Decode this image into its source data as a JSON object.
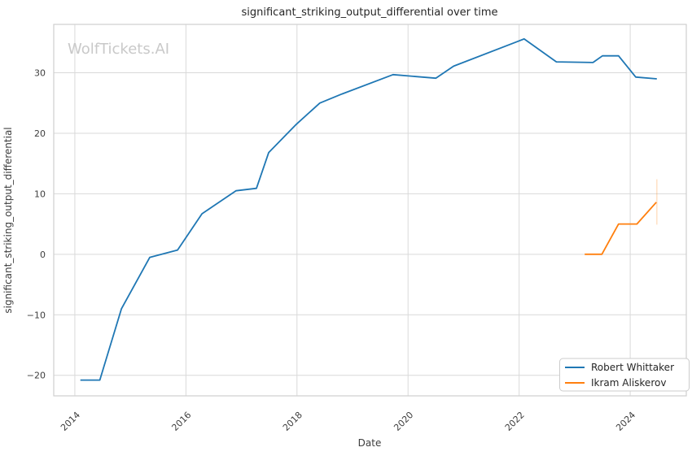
{
  "watermark": "WolfTickets.AI",
  "chart_data": {
    "type": "line",
    "title": "significant_striking_output_differential over time",
    "xlabel": "Date",
    "ylabel": "significant_striking_output_differential",
    "grid": true,
    "legend_position": "lower right",
    "x_axis": {
      "ticks": [
        2014,
        2016,
        2018,
        2020,
        2022,
        2024
      ],
      "tick_labels": [
        "2014",
        "2016",
        "2018",
        "2020",
        "2022",
        "2024"
      ],
      "range": [
        2013.62,
        2025.01
      ]
    },
    "y_axis": {
      "ticks": [
        -20,
        -10,
        0,
        10,
        20,
        30
      ],
      "tick_labels": [
        "−20",
        "−10",
        "0",
        "10",
        "20",
        "30"
      ],
      "range": [
        -23.4,
        38.0
      ]
    },
    "series": [
      {
        "name": "Robert Whittaker",
        "color": "#1f77b4",
        "points": [
          [
            2014.1,
            -20.8
          ],
          [
            2014.45,
            -20.8
          ],
          [
            2014.84,
            -9.0
          ],
          [
            2015.35,
            -0.5
          ],
          [
            2015.85,
            0.7
          ],
          [
            2016.29,
            6.7
          ],
          [
            2016.9,
            10.5
          ],
          [
            2017.27,
            10.9
          ],
          [
            2017.49,
            16.8
          ],
          [
            2017.99,
            21.5
          ],
          [
            2018.41,
            25.0
          ],
          [
            2018.81,
            26.5
          ],
          [
            2019.73,
            29.7
          ],
          [
            2020.5,
            29.1
          ],
          [
            2020.82,
            31.1
          ],
          [
            2022.09,
            35.6
          ],
          [
            2022.67,
            31.8
          ],
          [
            2023.33,
            31.7
          ],
          [
            2023.5,
            32.8
          ],
          [
            2023.79,
            32.8
          ],
          [
            2024.1,
            29.3
          ],
          [
            2024.48,
            29.0
          ]
        ]
      },
      {
        "name": "Ikram Aliskerov",
        "color": "#ff7f0e",
        "points": [
          [
            2023.18,
            0.0
          ],
          [
            2023.49,
            0.0
          ],
          [
            2023.79,
            5.0
          ],
          [
            2024.12,
            5.0
          ],
          [
            2024.47,
            8.6
          ]
        ]
      }
    ],
    "annotations": [
      {
        "type": "faint-vertical-line",
        "x": 2024.48,
        "y_from": 4.9,
        "y_to": 12.4,
        "color": "#ff7f0e",
        "opacity": 0.3
      }
    ]
  }
}
